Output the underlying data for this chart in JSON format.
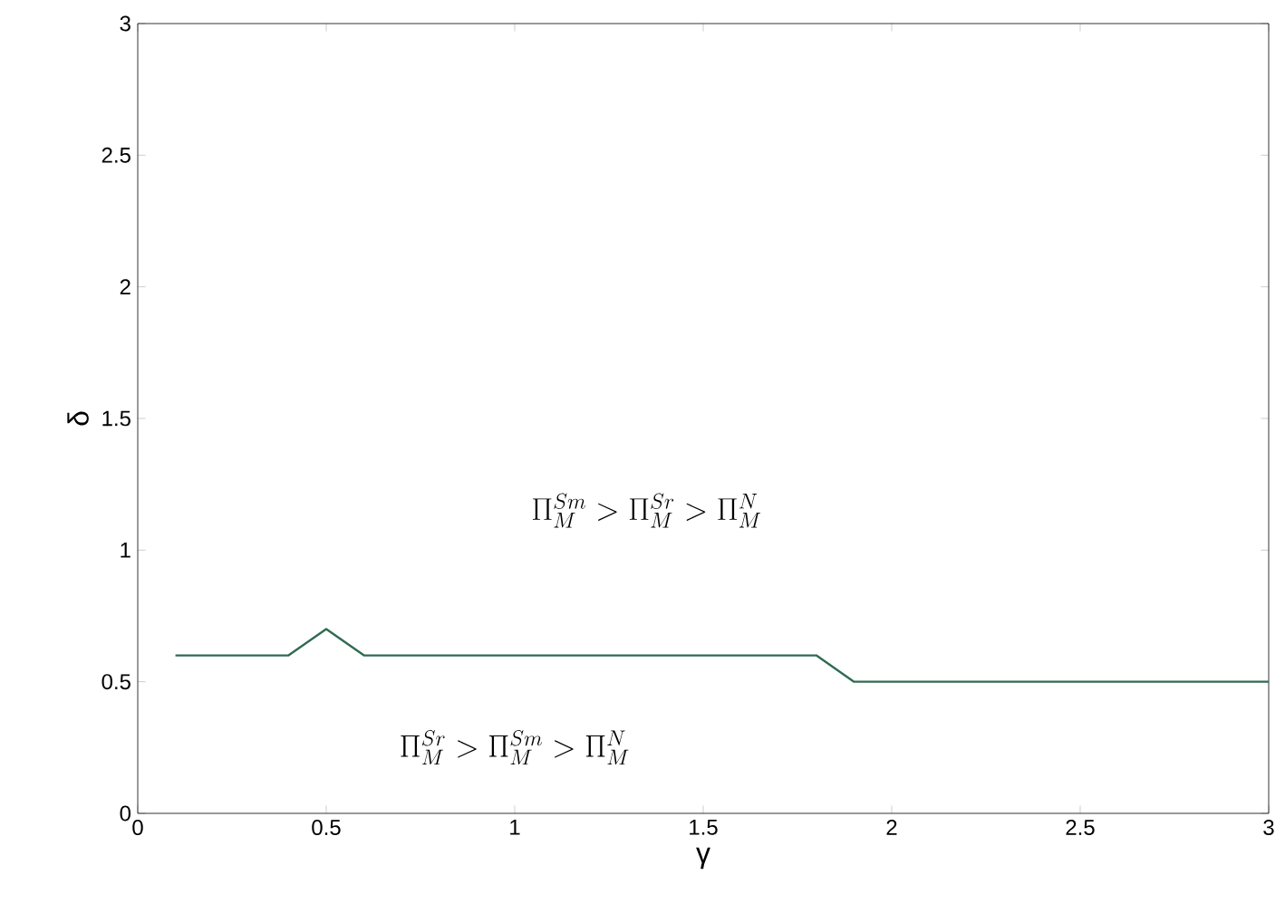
{
  "chart_data": {
    "type": "line",
    "xlabel": "γ",
    "ylabel": "δ",
    "x": [
      0.1,
      0.4,
      0.5,
      0.6,
      1.8,
      1.9,
      3
    ],
    "series": [
      {
        "color": "#2f6b50",
        "values": [
          0.6,
          0.6,
          0.7,
          0.6,
          0.6,
          0.5,
          0.5
        ]
      }
    ],
    "xlim": [
      0,
      3
    ],
    "ylim": [
      0,
      3
    ],
    "xticks": [
      0,
      0.5,
      1,
      1.5,
      2,
      2.5,
      3
    ],
    "yticks": [
      0,
      0.5,
      1,
      1.5,
      2,
      2.5,
      3
    ],
    "annotations": [
      "\\Pi_M^{Sm} > \\Pi_M^{Sr} > \\Pi_M^{N}",
      "\\Pi_M^{Sr} > \\Pi_M^{Sm} > \\Pi_M^{N}"
    ],
    "grid": false,
    "marker": "none",
    "line_style": "solid"
  }
}
